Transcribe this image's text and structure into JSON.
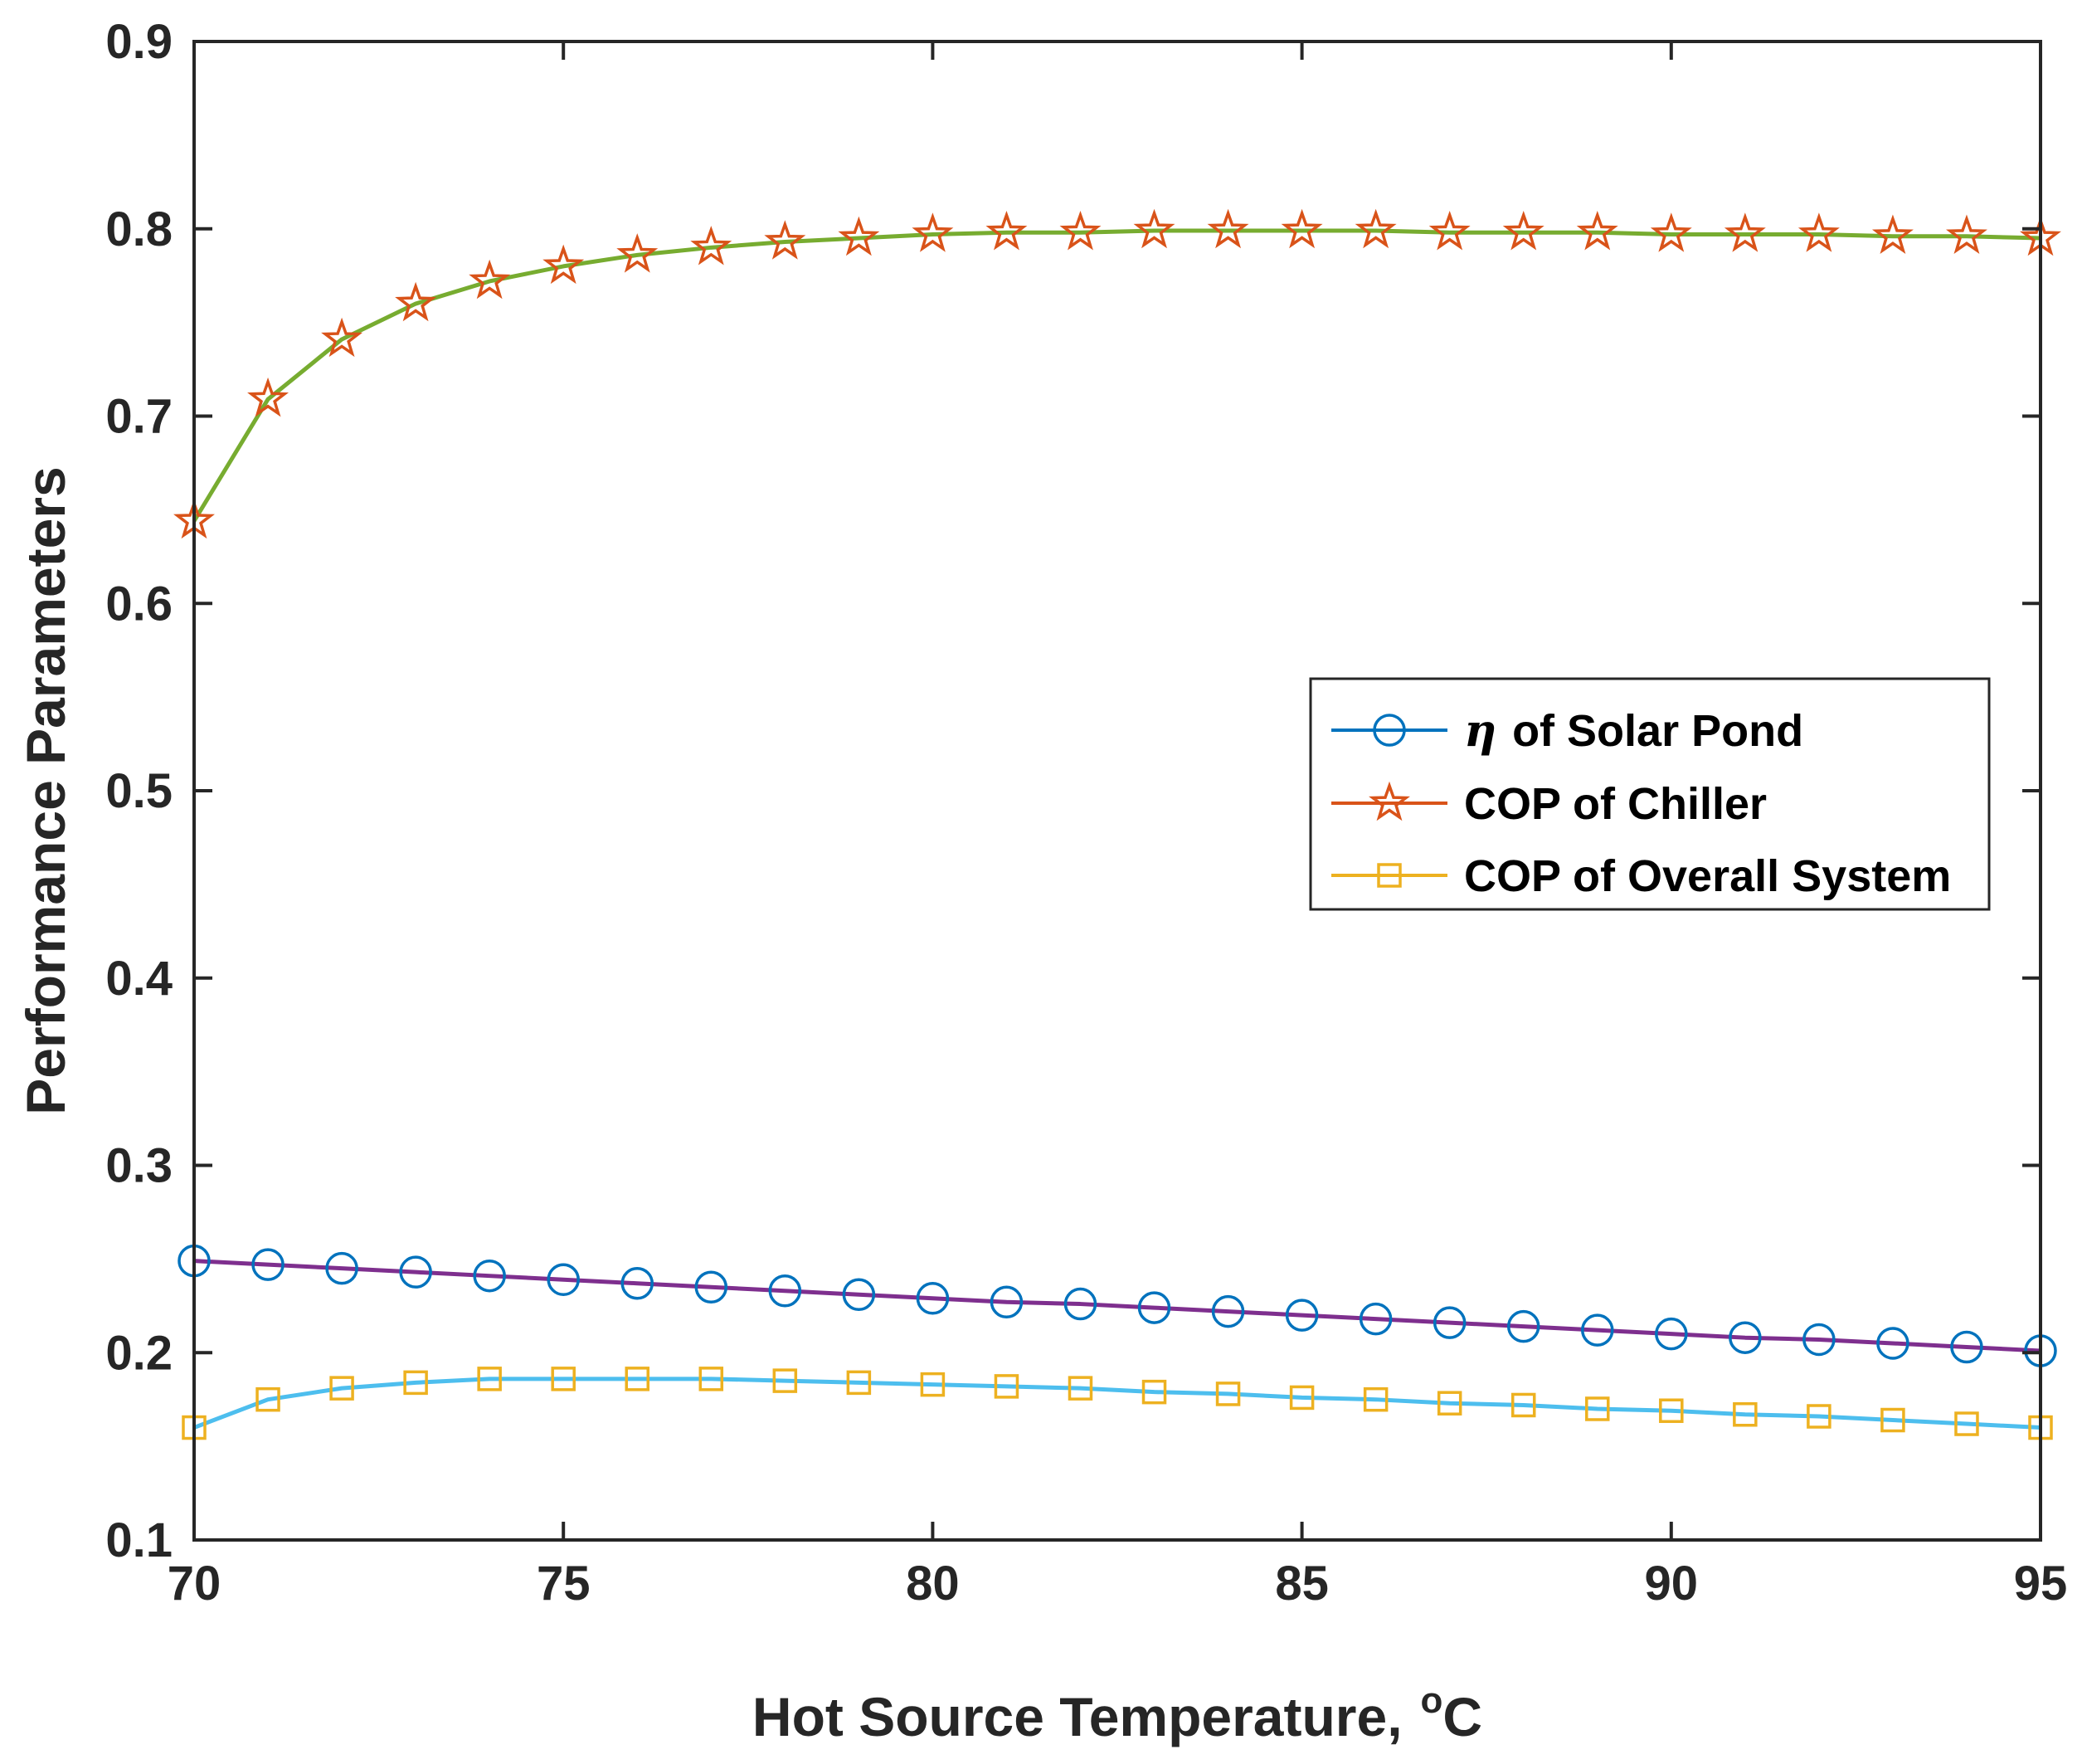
{
  "chart_data": {
    "type": "line",
    "xlabel": "Hot Source Temperature,",
    "xlabel_unit_superscript": "o",
    "xlabel_unit": "C",
    "ylabel": "Performance Parameters",
    "xlim": [
      70,
      95
    ],
    "ylim": [
      0.1,
      0.9
    ],
    "x_ticks": [
      "70",
      "75",
      "80",
      "85",
      "90",
      "95"
    ],
    "y_ticks": [
      "0.1",
      "0.2",
      "0.3",
      "0.4",
      "0.5",
      "0.6",
      "0.7",
      "0.8",
      "0.9"
    ],
    "grid": false,
    "legend_position": "center-right",
    "x": [
      70,
      71,
      72,
      73,
      74,
      75,
      76,
      77,
      78,
      79,
      80,
      81,
      82,
      83,
      84,
      85,
      86,
      87,
      88,
      89,
      90,
      91,
      92,
      93,
      94,
      95
    ],
    "series": [
      {
        "name": "of Solar Pond",
        "name_prefix_symbol": "η",
        "marker": "circle",
        "marker_color": "#0072BD",
        "line_color": "#7E2F8E",
        "legend_line_color": "#0072BD",
        "values": [
          0.249,
          0.247,
          0.245,
          0.243,
          0.241,
          0.239,
          0.237,
          0.235,
          0.233,
          0.231,
          0.229,
          0.227,
          0.226,
          0.224,
          0.222,
          0.22,
          0.218,
          0.216,
          0.214,
          0.212,
          0.21,
          0.208,
          0.207,
          0.205,
          0.203,
          0.201
        ]
      },
      {
        "name": "COP of Chiller",
        "marker": "star",
        "marker_color": "#D95319",
        "line_color": "#77AC30",
        "legend_line_color": "#D95319",
        "values": [
          0.644,
          0.709,
          0.741,
          0.76,
          0.772,
          0.78,
          0.786,
          0.79,
          0.793,
          0.795,
          0.797,
          0.798,
          0.798,
          0.799,
          0.799,
          0.799,
          0.799,
          0.798,
          0.798,
          0.798,
          0.797,
          0.797,
          0.797,
          0.796,
          0.796,
          0.795
        ]
      },
      {
        "name": "COP of Overall System",
        "marker": "square",
        "marker_color": "#EDB120",
        "line_color": "#4DBEEE",
        "legend_line_color": "#EDB120",
        "values": [
          0.16,
          0.175,
          0.181,
          0.184,
          0.186,
          0.186,
          0.186,
          0.186,
          0.185,
          0.184,
          0.183,
          0.182,
          0.181,
          0.179,
          0.178,
          0.176,
          0.175,
          0.173,
          0.172,
          0.17,
          0.169,
          0.167,
          0.166,
          0.164,
          0.162,
          0.16
        ]
      }
    ]
  }
}
